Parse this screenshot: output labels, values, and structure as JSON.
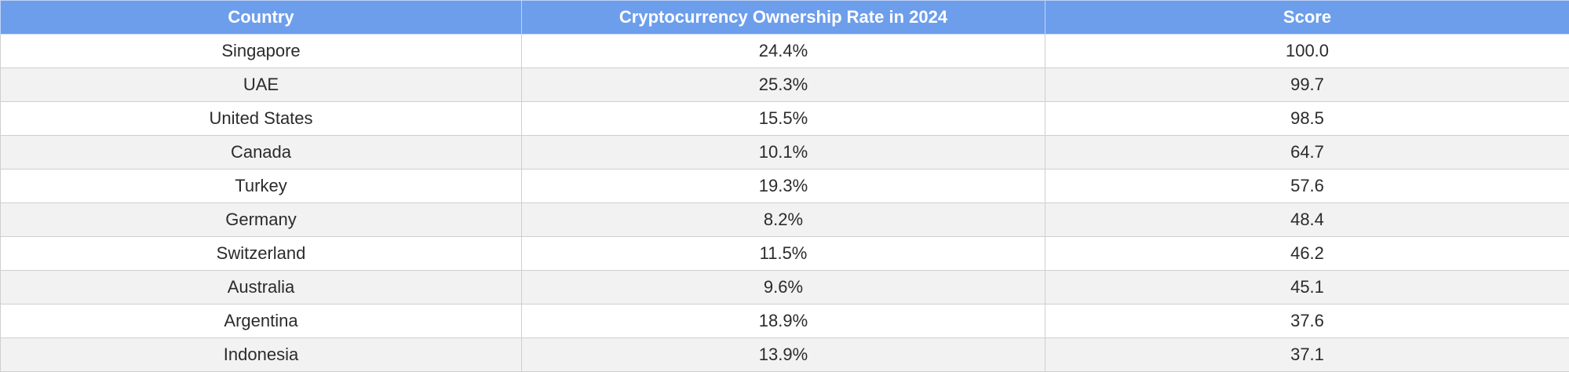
{
  "chart_data": {
    "type": "table",
    "columns": [
      "Country",
      "Cryptocurrency Ownership Rate in 2024",
      "Score"
    ],
    "rows": [
      [
        "Singapore",
        "24.4%",
        "100.0"
      ],
      [
        "UAE",
        "25.3%",
        "99.7"
      ],
      [
        "United States",
        "15.5%",
        "98.5"
      ],
      [
        "Canada",
        "10.1%",
        "64.7"
      ],
      [
        "Turkey",
        "19.3%",
        "57.6"
      ],
      [
        "Germany",
        "8.2%",
        "48.4"
      ],
      [
        "Switzerland",
        "11.5%",
        "46.2"
      ],
      [
        "Australia",
        "9.6%",
        "45.1"
      ],
      [
        "Argentina",
        "18.9%",
        "37.6"
      ],
      [
        "Indonesia",
        "13.9%",
        "37.1"
      ]
    ]
  },
  "colors": {
    "header_bg": "#6d9eeb",
    "header_text": "#ffffff",
    "row_alt_bg": "#f2f2f2",
    "row_bg": "#ffffff",
    "grid": "#cfcfcf"
  }
}
